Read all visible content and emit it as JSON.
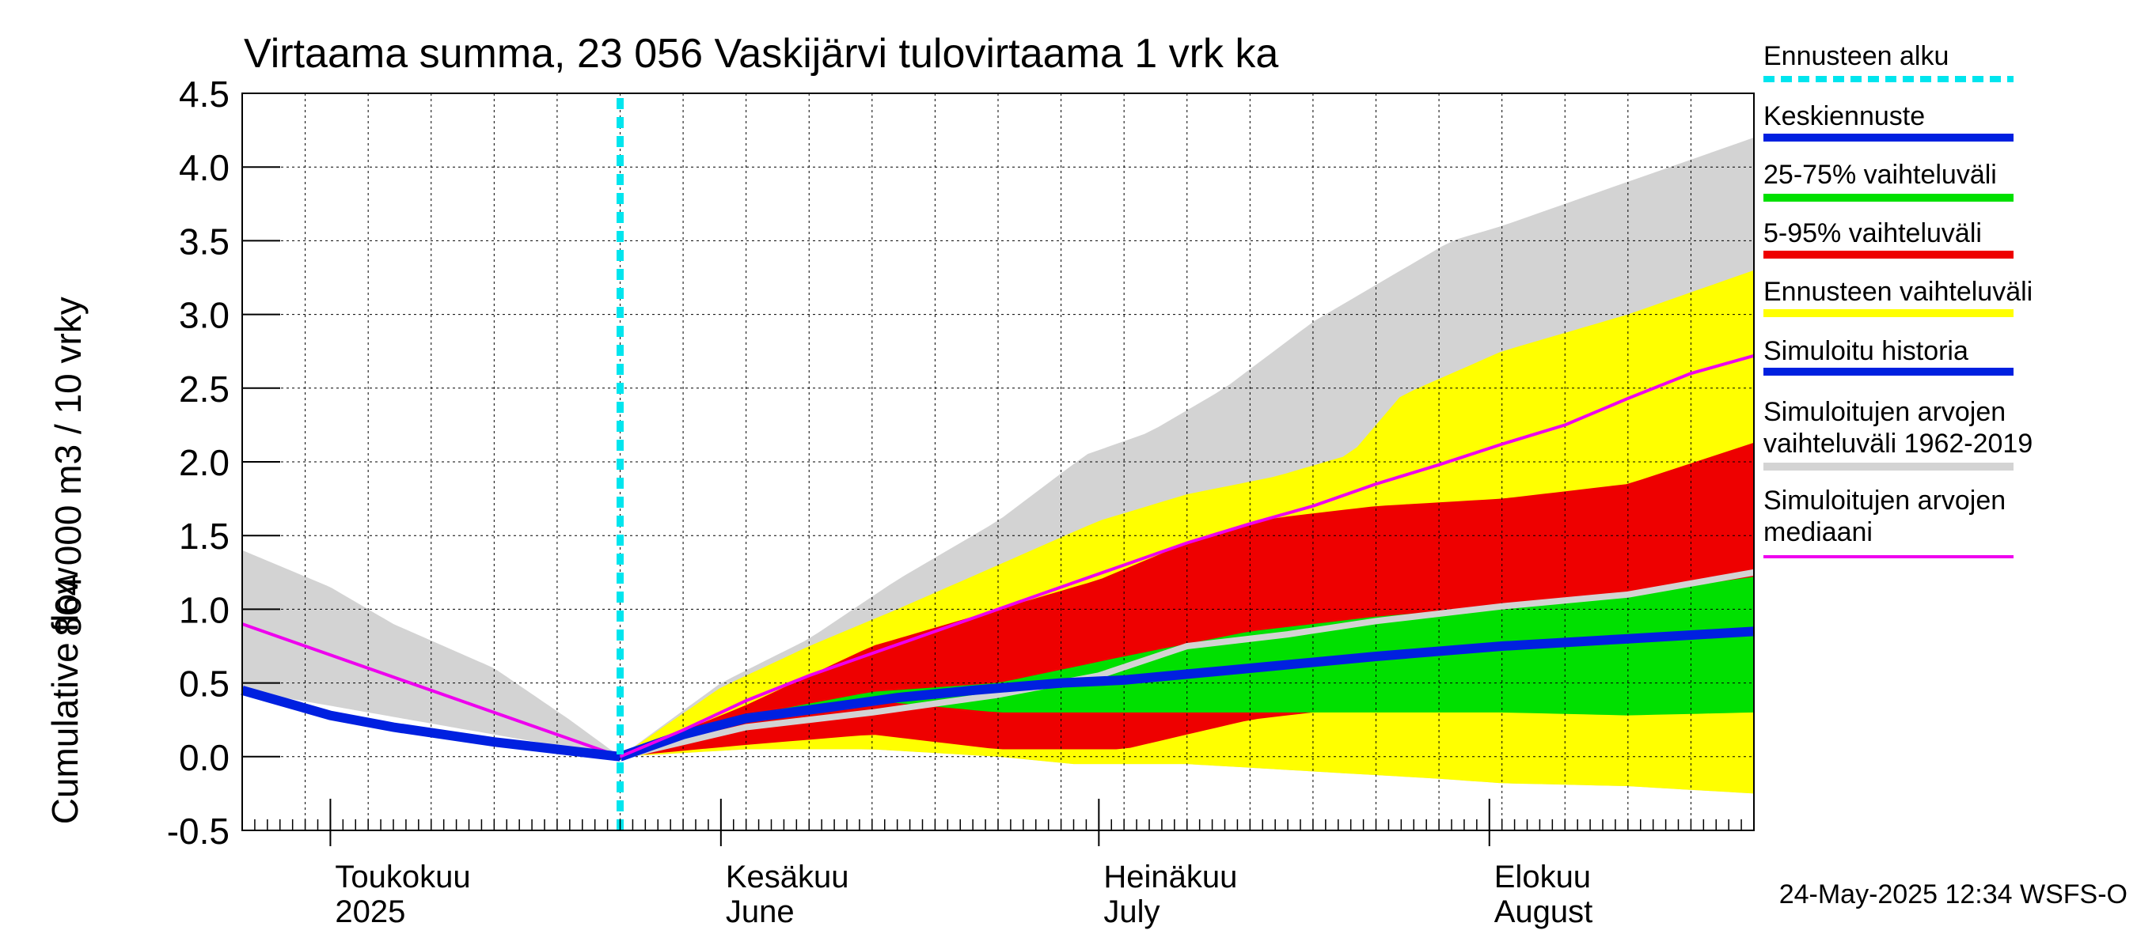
{
  "chart_data": {
    "type": "area",
    "title": "Virtaama summa, 23 056 Vaskijärvi tulovirtaama 1 vrk ka",
    "ylabel_top": "864 000 m3 / 10 vrky",
    "ylabel_bottom": "Cumulative flow",
    "ylim": [
      -0.5,
      4.5
    ],
    "y_ticks": [
      "4.5",
      "4.0",
      "3.5",
      "3.0",
      "2.5",
      "2.0",
      "1.5",
      "1.0",
      "0.5",
      "0.0",
      "-0.5"
    ],
    "x_range_days": [
      0,
      120
    ],
    "x_month_labels": [
      {
        "line1": "Toukokuu",
        "line2": "2025",
        "day": 7
      },
      {
        "line1": "Kesäkuu",
        "line2": "June",
        "day": 38
      },
      {
        "line1": "Heinäkuu",
        "line2": "July",
        "day": 68
      },
      {
        "line1": "Elokuu",
        "line2": "August",
        "day": 99
      }
    ],
    "forecast_start_day": 30,
    "grid": true,
    "footer": "24-May-2025 12:34 WSFS-O",
    "legend": [
      {
        "label": "Ennusteen alku",
        "color": "#00e5ee",
        "style": "dashed"
      },
      {
        "label": "Keskiennuste",
        "color": "#0020e0",
        "style": "thick"
      },
      {
        "label": "25-75% vaihteluväli",
        "color": "#00e000",
        "style": "thick"
      },
      {
        "label": "5-95% vaihteluväli",
        "color": "#ee0000",
        "style": "thick"
      },
      {
        "label": "Ennusteen vaihteluväli",
        "color": "#ffff00",
        "style": "thick"
      },
      {
        "label": "Simuloitu historia",
        "color": "#0020e0",
        "style": "thick"
      },
      {
        "label": "Simuloitujen arvojen vaihteluväli 1962-2019",
        "line1": "Simuloitujen arvojen",
        "line2": "vaihteluväli 1962-2019",
        "color": "#d3d3d3",
        "style": "thick"
      },
      {
        "label": "Simuloitujen arvojen mediaani",
        "line1": "Simuloitujen arvojen",
        "line2": "mediaani",
        "color": "#ee00ee",
        "style": "thin"
      }
    ],
    "series": {
      "hist_range_upper": {
        "x": [
          0,
          7,
          12,
          20,
          26,
          30
        ],
        "y": [
          1.4,
          1.15,
          0.9,
          0.6,
          0.25,
          0.0
        ]
      },
      "hist_range_lower": {
        "x": [
          0,
          30
        ],
        "y": [
          0.45,
          0.0
        ]
      },
      "hist_median": {
        "x": [
          0,
          30
        ],
        "y": [
          0.9,
          0.0
        ]
      },
      "hist_sim": {
        "x": [
          0,
          7,
          12,
          20,
          30
        ],
        "y": [
          0.45,
          0.28,
          0.2,
          0.1,
          0.0
        ]
      },
      "clim_upper": {
        "x": [
          30,
          38,
          45,
          52,
          60,
          67,
          72,
          78,
          85,
          90,
          96,
          100,
          110,
          120
        ],
        "y": [
          0.0,
          0.5,
          0.8,
          1.2,
          1.6,
          2.05,
          2.2,
          2.5,
          2.95,
          3.2,
          3.5,
          3.6,
          3.9,
          4.2
        ]
      },
      "clim_median": {
        "x": [
          30,
          40,
          50,
          60,
          68,
          75,
          83,
          90,
          100,
          110,
          120
        ],
        "y": [
          0.0,
          0.2,
          0.3,
          0.42,
          0.55,
          0.75,
          0.83,
          0.92,
          1.02,
          1.1,
          1.25
        ]
      },
      "ens_upper": {
        "x": [
          30,
          38,
          45,
          52,
          60,
          68,
          75,
          82,
          88,
          92,
          100,
          110,
          120
        ],
        "y": [
          0.0,
          0.47,
          0.75,
          1.0,
          1.3,
          1.6,
          1.78,
          1.9,
          2.05,
          2.45,
          2.75,
          3.0,
          3.3
        ]
      },
      "ens_lower": {
        "x": [
          30,
          40,
          50,
          60,
          66,
          75,
          85,
          95,
          100,
          110,
          120
        ],
        "y": [
          0.0,
          0.05,
          0.05,
          0.0,
          -0.05,
          -0.05,
          -0.1,
          -0.15,
          -0.18,
          -0.2,
          -0.25
        ]
      },
      "p95": {
        "x": [
          30,
          40,
          50,
          60,
          68,
          75,
          82,
          90,
          100,
          110,
          120
        ],
        "y": [
          0.0,
          0.35,
          0.75,
          1.0,
          1.2,
          1.45,
          1.62,
          1.7,
          1.75,
          1.85,
          2.13
        ]
      },
      "p5": {
        "x": [
          30,
          40,
          50,
          55,
          60,
          70,
          80,
          90,
          100,
          110,
          120
        ],
        "y": [
          0.0,
          0.08,
          0.15,
          0.1,
          0.05,
          0.05,
          0.25,
          0.35,
          0.4,
          0.3,
          0.35
        ]
      },
      "p75": {
        "x": [
          30,
          40,
          50,
          60,
          70,
          80,
          90,
          100,
          110,
          120
        ],
        "y": [
          0.0,
          0.28,
          0.44,
          0.5,
          0.68,
          0.85,
          0.95,
          1.02,
          1.1,
          1.22
        ]
      },
      "p25": {
        "x": [
          30,
          40,
          50,
          60,
          70,
          80,
          90,
          100,
          110,
          120
        ],
        "y": [
          0.0,
          0.25,
          0.38,
          0.3,
          0.3,
          0.3,
          0.3,
          0.3,
          0.28,
          0.3
        ]
      },
      "ens_median": {
        "x": [
          30,
          35,
          40,
          47,
          52,
          58,
          65,
          70,
          80,
          90,
          100,
          110,
          120
        ],
        "y": [
          0.0,
          0.15,
          0.26,
          0.34,
          0.4,
          0.45,
          0.5,
          0.52,
          0.6,
          0.68,
          0.75,
          0.8,
          0.85
        ]
      },
      "forecast_median": {
        "x": [
          30,
          35,
          40,
          45,
          50,
          55,
          60,
          65,
          70,
          75,
          80,
          85,
          90,
          95,
          100,
          105,
          110,
          115,
          120
        ],
        "y": [
          0.0,
          0.18,
          0.38,
          0.55,
          0.7,
          0.85,
          1.0,
          1.15,
          1.3,
          1.45,
          1.58,
          1.7,
          1.85,
          1.98,
          2.12,
          2.25,
          2.43,
          2.6,
          2.72
        ]
      }
    }
  }
}
